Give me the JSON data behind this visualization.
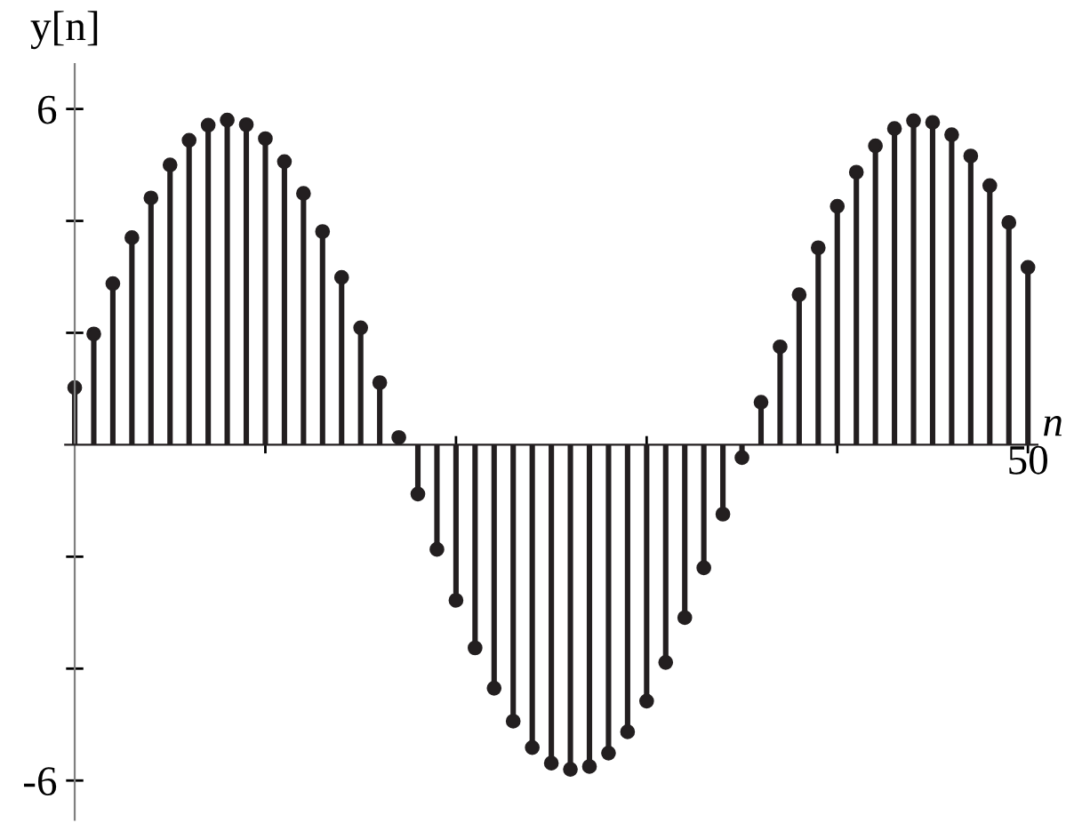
{
  "chart_data": {
    "type": "lollipop",
    "xlabel": "n",
    "ylabel": "y[n]",
    "categories": [
      null,
      null,
      null,
      null,
      null,
      null,
      null,
      null,
      null,
      null,
      null,
      null,
      null,
      null,
      null,
      null,
      null,
      null,
      null,
      null,
      null,
      null,
      null,
      null,
      null,
      null,
      null,
      null,
      null,
      null,
      null,
      null,
      null,
      null,
      null,
      null,
      null,
      null,
      null,
      null,
      null,
      null,
      null,
      null,
      null,
      null,
      null,
      null,
      null,
      null,
      null
    ],
    "series": [
      {
        "color": "#231f20",
        "values": [
          1.02,
          1.98,
          2.88,
          3.7,
          4.41,
          5.0,
          5.44,
          5.71,
          5.8,
          5.72,
          5.47,
          5.06,
          4.49,
          3.81,
          2.99,
          2.09,
          1.11,
          0.13,
          -0.88,
          -1.87,
          -2.78,
          -3.63,
          -4.35,
          -4.94,
          -5.41,
          -5.69,
          -5.8,
          -5.75,
          -5.51,
          -5.13,
          -4.58,
          -3.89,
          -3.09,
          -2.2,
          -1.24,
          -0.23,
          0.76,
          1.75,
          2.68,
          3.52,
          4.26,
          4.87,
          5.34,
          5.65,
          5.79,
          5.76,
          5.54,
          5.16,
          4.63,
          3.97,
          3.17
        ]
      }
    ],
    "annotations": [
      "50"
    ],
    "ylim": [
      -6.7,
      6.8
    ],
    "yticks": [
      -6,
      {
        "value": -4,
        "label": null
      },
      {
        "value": -2,
        "label": null
      },
      {
        "value": 2,
        "label": null
      },
      {
        "value": 4,
        "label": null
      },
      6
    ],
    "marker": "circle",
    "grid": false,
    "legend": false
  }
}
